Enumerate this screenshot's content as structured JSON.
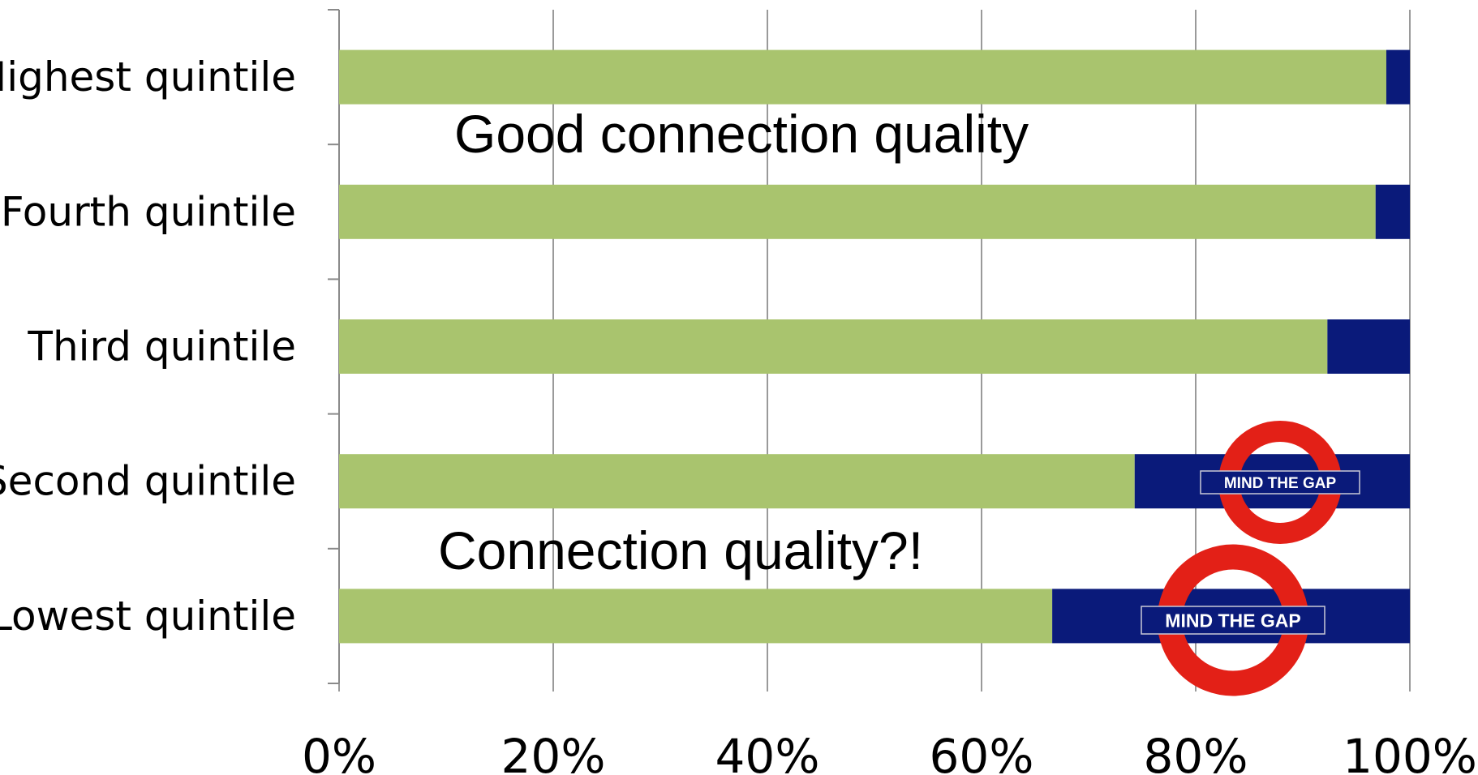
{
  "chart_data": {
    "type": "bar",
    "orientation": "horizontal",
    "stacked": "percent",
    "categories": [
      "Highest quintile",
      "Fourth quintile",
      "Third quintile",
      "Second quintile",
      "Lowest quintile"
    ],
    "series": [
      {
        "values": [
          97.8,
          96.8,
          92.3,
          74.3,
          66.6
        ],
        "color": "#A9C46E"
      },
      {
        "values": [
          2.2,
          3.2,
          7.7,
          25.7,
          33.4
        ],
        "color": "#0A1A7A"
      }
    ],
    "xlim": [
      0,
      100
    ],
    "xticks": [
      "0%",
      "20%",
      "40%",
      "60%",
      "80%",
      "100%"
    ],
    "grid": true,
    "annotations": [
      {
        "text": "Good connection quality"
      },
      {
        "text": "Connection quality?!"
      }
    ],
    "logos": [
      {
        "category": "Second quintile",
        "text": "MIND THE GAP",
        "ring_color": "#E32017"
      },
      {
        "category": "Lowest quintile",
        "text": "MIND THE GAP",
        "ring_color": "#E32017"
      }
    ]
  }
}
